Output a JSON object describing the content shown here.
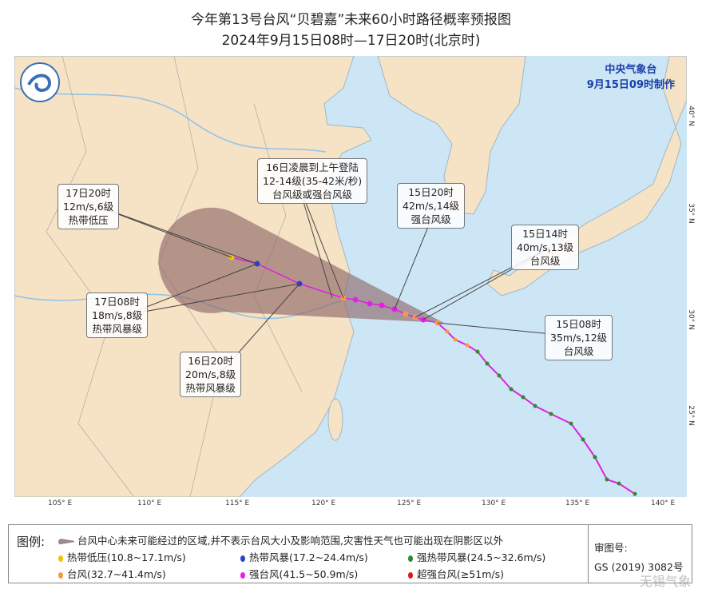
{
  "title": {
    "line1": "今年第13号台风“贝碧嘉”未来60小时路径概率预报图",
    "line2": "2024年9月15日08时—17日20时(北京时)"
  },
  "agency": {
    "name": "中央气象台",
    "issued": "9月15日09时制作"
  },
  "axes": {
    "lon": [
      "105° E",
      "110° E",
      "115° E",
      "120° E",
      "125° E",
      "130° E",
      "135° E",
      "140° E"
    ],
    "lat": [
      "40° N",
      "35° N",
      "30° N",
      "25° N"
    ]
  },
  "labels": [
    {
      "l1": "17日20时",
      "l2": "12m/s,6级",
      "l3": "热带低压"
    },
    {
      "l1": "16日凌晨到上午登陆",
      "l2": "12-14级(35-42米/秒)",
      "l3": "台风级或强台风级"
    },
    {
      "l1": "15日20时",
      "l2": "42m/s,14级",
      "l3": "强台风级"
    },
    {
      "l1": "15日14时",
      "l2": "40m/s,13级",
      "l3": "台风级"
    },
    {
      "l1": "17日08时",
      "l2": "18m/s,8级",
      "l3": "热带风暴级"
    },
    {
      "l1": "15日08时",
      "l2": "35m/s,12级",
      "l3": "台风级"
    },
    {
      "l1": "16日20时",
      "l2": "20m/s,8级",
      "l3": "热带风暴级"
    }
  ],
  "legend": {
    "title": "图例:",
    "cone": "台风中心未来可能经过的区域,并不表示台风大小及影响范围,灾害性天气也可能出现在阴影区以外",
    "items": [
      {
        "label": "热带低压(10.8~17.1m/s)",
        "color": "#f2c500"
      },
      {
        "label": "热带风暴(17.2~24.4m/s)",
        "color": "#2a3fd6"
      },
      {
        "label": "强热带风暴(24.5~32.6m/s)",
        "color": "#2f8a2f"
      },
      {
        "label": "台风(32.7~41.4m/s)",
        "color": "#f59a4a"
      },
      {
        "label": "强台风(41.5~50.9m/s)",
        "color": "#e81ee8"
      },
      {
        "label": "超强台风(≥51m/s)",
        "color": "#e01818"
      }
    ],
    "approval_label": "审图号:",
    "approval_no": "GS (2019) 3082号"
  },
  "watermark": "无锡气象",
  "colors": {
    "land": "#f6e2c4",
    "sea": "#cde6f6",
    "cone": "#8a6464",
    "track_past": "#2aa02a",
    "track_forecast": "#e020e0"
  }
}
